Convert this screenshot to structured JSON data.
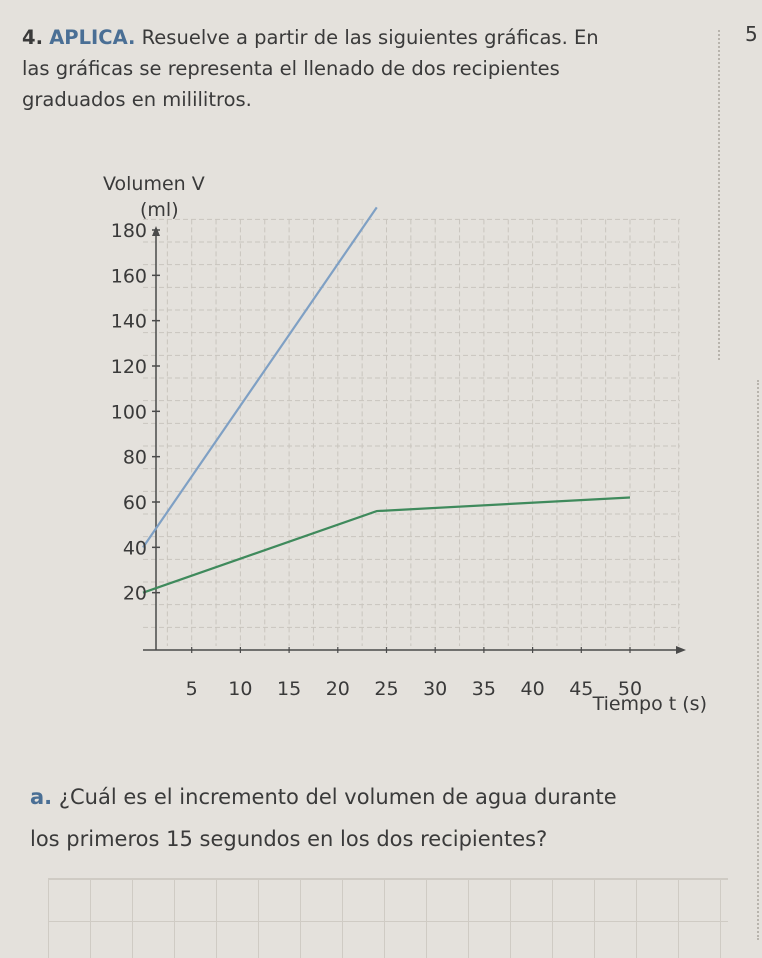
{
  "exercise": {
    "number": "4.",
    "label": "APLICA.",
    "text_line1": " Resuelve a partir de las siguientes gráficas. En",
    "text_line2": "las gráficas se representa el llenado de dos recipientes",
    "text_line3": "graduados en mililitros."
  },
  "page_number": "5",
  "question": {
    "letter": "a.",
    "text_line1": " ¿Cuál es el incremento del volumen de agua durante",
    "text_line2": "los primeros 15 segundos en los dos recipientes?"
  },
  "colors": {
    "blue_line": "#7fa0c4",
    "green_line": "#3f8a5c",
    "grid": "#c9c5be",
    "axis": "#4a4a4a"
  },
  "chart_data": {
    "type": "line",
    "ylabel_line1": "Volumen V",
    "ylabel_line2": "(ml)",
    "xlabel": "Tiempo t (s)",
    "x_ticks": [
      "5",
      "10",
      "15",
      "20",
      "25",
      "30",
      "35",
      "40",
      "45",
      "50"
    ],
    "y_ticks": [
      "20",
      "40",
      "60",
      "80",
      "100",
      "120",
      "140",
      "160",
      "180"
    ],
    "xlim": [
      0,
      50
    ],
    "ylim": [
      0,
      180
    ],
    "grid": true,
    "series": [
      {
        "color": "#7fa0c4",
        "x": [
          0,
          24
        ],
        "y": [
          40,
          190
        ]
      },
      {
        "color": "#3f8a5c",
        "x": [
          0,
          24,
          50
        ],
        "y": [
          20,
          56,
          62
        ]
      }
    ]
  }
}
